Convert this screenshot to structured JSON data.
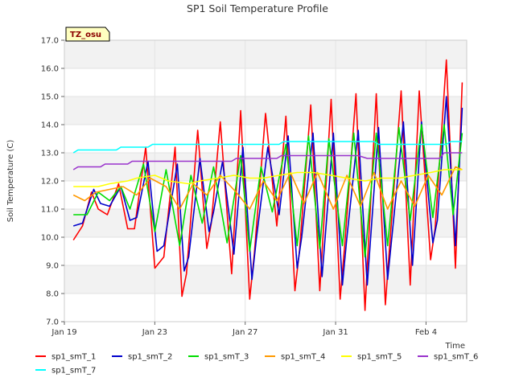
{
  "chart_data": {
    "type": "line",
    "title": "SP1 Soil Temperature Profile",
    "xlabel": "Time",
    "ylabel": "Soil Temperature (C)",
    "site_label": "TZ_osu",
    "x_unit": "day of 2019 (Jan 19 = 19)",
    "xlim": [
      19,
      36.8
    ],
    "ylim": [
      7.0,
      17.0
    ],
    "grid": true,
    "legend_position": "bottom",
    "x_ticks": [
      {
        "x": 19,
        "label": "Jan 19"
      },
      {
        "x": 23,
        "label": "Jan 23"
      },
      {
        "x": 27,
        "label": "Jan 27"
      },
      {
        "x": 31,
        "label": "Jan 31"
      },
      {
        "x": 35,
        "label": "Feb 4"
      }
    ],
    "y_ticks": [
      7.0,
      8.0,
      9.0,
      10.0,
      11.0,
      12.0,
      13.0,
      14.0,
      15.0,
      16.0,
      17.0
    ],
    "series": [
      {
        "name": "sp1_smT_1",
        "color": "#ff0000",
        "x": [
          19.4,
          19.8,
          20.2,
          20.5,
          20.9,
          21.4,
          21.8,
          22.1,
          22.6,
          23.0,
          23.4,
          23.9,
          24.2,
          24.4,
          24.9,
          25.3,
          25.5,
          25.9,
          26.4,
          26.8,
          27.2,
          27.4,
          27.9,
          28.4,
          28.8,
          29.2,
          29.4,
          29.9,
          30.3,
          30.8,
          31.2,
          31.4,
          31.9,
          32.3,
          32.8,
          33.2,
          33.4,
          33.9,
          34.3,
          34.7,
          35.2,
          35.4,
          35.9,
          36.3,
          36.6
        ],
        "values": [
          9.9,
          10.4,
          11.6,
          11.0,
          10.8,
          11.9,
          10.3,
          10.3,
          13.2,
          8.9,
          9.3,
          13.2,
          7.9,
          8.7,
          13.8,
          9.6,
          10.5,
          14.1,
          8.7,
          14.5,
          7.8,
          9.4,
          14.4,
          10.4,
          14.3,
          8.1,
          9.5,
          14.7,
          8.1,
          14.9,
          7.8,
          9.7,
          15.1,
          7.4,
          15.1,
          7.6,
          9.8,
          15.2,
          8.3,
          15.2,
          9.2,
          10.3,
          16.3,
          8.9,
          15.5
        ]
      },
      {
        "name": "sp1_smT_2",
        "color": "#0000cc",
        "x": [
          19.4,
          19.8,
          20.3,
          20.6,
          21.0,
          21.5,
          21.9,
          22.2,
          22.7,
          23.1,
          23.4,
          24.0,
          24.3,
          24.5,
          25.0,
          25.4,
          25.6,
          26.0,
          26.5,
          26.9,
          27.3,
          27.5,
          28.0,
          28.5,
          28.9,
          29.3,
          29.5,
          30.0,
          30.4,
          30.9,
          31.3,
          31.5,
          32.0,
          32.4,
          32.9,
          33.3,
          33.5,
          34.0,
          34.4,
          34.8,
          35.3,
          35.5,
          35.9,
          36.3,
          36.6
        ],
        "values": [
          10.4,
          10.5,
          11.7,
          11.2,
          11.1,
          11.8,
          10.6,
          10.7,
          12.7,
          9.5,
          9.7,
          12.6,
          8.8,
          9.3,
          12.8,
          10.2,
          10.9,
          12.7,
          9.4,
          13.2,
          8.5,
          10.0,
          13.2,
          10.8,
          13.6,
          8.9,
          10.0,
          13.7,
          8.6,
          13.7,
          8.3,
          10.0,
          13.8,
          8.3,
          13.9,
          8.5,
          10.1,
          14.1,
          9.0,
          14.1,
          9.8,
          10.6,
          15.0,
          9.7,
          14.6
        ]
      },
      {
        "name": "sp1_smT_3",
        "color": "#00dd00",
        "x": [
          19.4,
          20.0,
          20.5,
          21.0,
          21.5,
          21.9,
          22.5,
          23.0,
          23.5,
          24.1,
          24.6,
          25.1,
          25.6,
          26.2,
          26.8,
          27.2,
          27.7,
          28.2,
          28.8,
          29.3,
          29.8,
          30.3,
          30.7,
          31.3,
          31.8,
          32.3,
          32.8,
          33.3,
          33.8,
          34.3,
          34.8,
          35.3,
          35.8,
          36.2,
          36.6
        ],
        "values": [
          10.8,
          10.8,
          11.6,
          11.3,
          11.8,
          11.0,
          12.6,
          10.2,
          12.4,
          9.7,
          12.2,
          10.5,
          12.5,
          9.8,
          12.9,
          9.5,
          12.5,
          10.9,
          13.3,
          9.7,
          13.6,
          9.6,
          13.5,
          9.7,
          13.7,
          9.3,
          13.7,
          9.7,
          13.9,
          10.6,
          14.0,
          10.7,
          14.0,
          10.8,
          13.7
        ]
      },
      {
        "name": "sp1_smT_4",
        "color": "#ff9900",
        "x": [
          19.4,
          19.9,
          20.4,
          21.0,
          21.6,
          22.2,
          22.8,
          23.5,
          24.1,
          24.7,
          25.3,
          25.9,
          26.6,
          27.2,
          27.8,
          28.4,
          29.0,
          29.6,
          30.2,
          30.9,
          31.5,
          32.1,
          32.7,
          33.3,
          33.9,
          34.5,
          35.1,
          35.7,
          36.3,
          36.6
        ],
        "values": [
          11.5,
          11.3,
          11.6,
          11.7,
          11.8,
          11.5,
          12.1,
          11.8,
          11.0,
          11.9,
          11.5,
          12.2,
          11.6,
          11.0,
          12.0,
          11.3,
          12.3,
          11.2,
          12.3,
          11.0,
          12.2,
          11.1,
          12.3,
          11.0,
          12.0,
          11.1,
          12.2,
          11.5,
          12.5,
          12.4
        ]
      },
      {
        "name": "sp1_smT_5",
        "color": "#ffff00",
        "x": [
          19.4,
          20.5,
          21.0,
          21.8,
          22.2,
          23.0,
          23.6,
          24.5,
          25.0,
          25.8,
          26.5,
          27.2,
          27.8,
          28.5,
          29.3,
          30.0,
          30.8,
          31.5,
          32.3,
          33.0,
          33.8,
          34.5,
          35.2,
          35.8,
          36.6
        ],
        "values": [
          11.8,
          11.8,
          11.9,
          12.0,
          12.1,
          12.2,
          12.0,
          11.9,
          12.0,
          12.1,
          12.2,
          12.1,
          12.1,
          12.2,
          12.3,
          12.3,
          12.2,
          12.1,
          12.0,
          12.1,
          12.1,
          12.2,
          12.3,
          12.4,
          12.4
        ]
      },
      {
        "name": "sp1_smT_6",
        "color": "#9933cc",
        "x": [
          19.4,
          19.6,
          20.6,
          20.8,
          21.8,
          22.0,
          22.4,
          24.8,
          25.0,
          26.4,
          26.6,
          28.4,
          28.6,
          30.4,
          30.6,
          32.0,
          32.4,
          35.6,
          35.8,
          36.6
        ],
        "values": [
          12.4,
          12.5,
          12.5,
          12.6,
          12.6,
          12.7,
          12.7,
          12.7,
          12.7,
          12.7,
          12.8,
          12.8,
          12.9,
          12.9,
          12.9,
          12.9,
          12.8,
          12.8,
          13.0,
          13.0
        ]
      },
      {
        "name": "sp1_smT_7",
        "color": "#00ffff",
        "x": [
          19.4,
          19.6,
          21.3,
          21.5,
          22.7,
          22.9,
          28.5,
          28.7,
          32.7,
          32.9,
          35.9,
          36.1,
          36.6
        ],
        "values": [
          13.0,
          13.1,
          13.1,
          13.2,
          13.2,
          13.3,
          13.3,
          13.4,
          13.4,
          13.3,
          13.3,
          13.4,
          13.4
        ]
      }
    ]
  }
}
